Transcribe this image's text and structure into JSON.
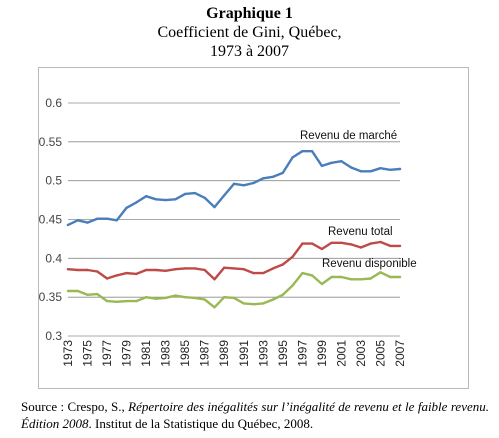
{
  "figure": {
    "label": "Graphique 1",
    "subtitle_line1": "Coefficient de Gini, Québec,",
    "subtitle_line2": "1973 à 2007"
  },
  "chart_data": {
    "type": "line",
    "title": "",
    "xlabel": "",
    "ylabel": "",
    "ylim": [
      0.3,
      0.6
    ],
    "yticks": [
      0.3,
      0.35,
      0.4,
      0.45,
      0.5,
      0.55,
      0.6
    ],
    "ytick_labels": [
      "0.3",
      "0.35",
      "0.4",
      "0.45",
      "0.5",
      "0.55",
      "0.6"
    ],
    "grid": true,
    "xtick_labels": [
      "1973",
      "1975",
      "1977",
      "1979",
      "1981",
      "1983",
      "1985",
      "1987",
      "1989",
      "1991",
      "1993",
      "1995",
      "1997",
      "1999",
      "2001",
      "2003",
      "2005",
      "2007"
    ],
    "x": [
      1973,
      1974,
      1975,
      1976,
      1977,
      1978,
      1979,
      1980,
      1981,
      1982,
      1983,
      1984,
      1985,
      1986,
      1987,
      1988,
      1989,
      1990,
      1991,
      1992,
      1993,
      1994,
      1995,
      1996,
      1997,
      1998,
      1999,
      2000,
      2001,
      2002,
      2003,
      2004,
      2005,
      2006,
      2007
    ],
    "series": [
      {
        "name": "Revenu de marché",
        "color": "#4a7ebb",
        "values": [
          0.443,
          0.449,
          0.446,
          0.451,
          0.451,
          0.449,
          0.465,
          0.472,
          0.48,
          0.476,
          0.475,
          0.476,
          0.483,
          0.484,
          0.478,
          0.466,
          0.481,
          0.496,
          0.494,
          0.497,
          0.503,
          0.505,
          0.51,
          0.53,
          0.538,
          0.538,
          0.519,
          0.523,
          0.525,
          0.517,
          0.512,
          0.512,
          0.516,
          0.514,
          0.515
        ]
      },
      {
        "name": "Revenu total",
        "color": "#be4b48",
        "values": [
          0.386,
          0.385,
          0.385,
          0.383,
          0.374,
          0.378,
          0.381,
          0.38,
          0.385,
          0.385,
          0.384,
          0.386,
          0.387,
          0.387,
          0.385,
          0.373,
          0.388,
          0.387,
          0.386,
          0.381,
          0.381,
          0.387,
          0.392,
          0.402,
          0.419,
          0.419,
          0.412,
          0.42,
          0.42,
          0.418,
          0.414,
          0.419,
          0.421,
          0.416,
          0.416
        ]
      },
      {
        "name": "Revenu disponible",
        "color": "#98b954",
        "values": [
          0.358,
          0.358,
          0.353,
          0.354,
          0.345,
          0.344,
          0.345,
          0.345,
          0.35,
          0.348,
          0.349,
          0.352,
          0.35,
          0.349,
          0.347,
          0.337,
          0.35,
          0.349,
          0.342,
          0.341,
          0.342,
          0.347,
          0.353,
          0.365,
          0.381,
          0.378,
          0.367,
          0.376,
          0.376,
          0.373,
          0.373,
          0.374,
          0.382,
          0.376,
          0.376
        ]
      }
    ]
  },
  "source": {
    "prefix": "Source : Crespo, S., ",
    "title_italic": "Répertoire des inégalités sur l’inégalité de revenu et le faible revenu. Édition 2008",
    "suffix": ". Institut de la Statistique du Québec, 2008."
  }
}
